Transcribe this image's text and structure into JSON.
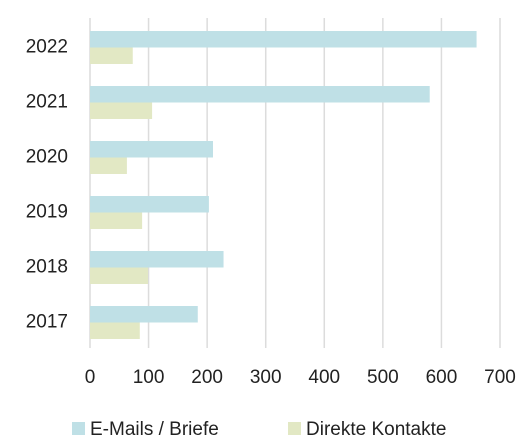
{
  "chart_data": {
    "type": "bar",
    "orientation": "horizontal",
    "categories": [
      "2022",
      "2021",
      "2020",
      "2019",
      "2018",
      "2017"
    ],
    "series": [
      {
        "name": "E-Mails / Briefe",
        "color": "#bfe0e6",
        "values": [
          660,
          580,
          210,
          203,
          228,
          184
        ]
      },
      {
        "name": "Direkte Kontakte",
        "color": "#e2e8c4",
        "values": [
          73,
          106,
          63,
          89,
          99,
          85
        ]
      }
    ],
    "xlim": [
      0,
      700
    ],
    "xticks": [
      0,
      100,
      200,
      300,
      400,
      500,
      600,
      700
    ],
    "grid": true,
    "legend": "bottom"
  }
}
